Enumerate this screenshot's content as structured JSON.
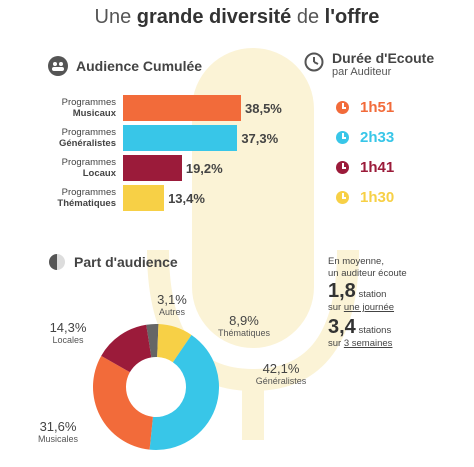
{
  "title_light": "Une ",
  "title_bold": "grande diversité",
  "title_light2": " de ",
  "title_bold2": "l'offre",
  "audience_section": {
    "title": "Audience Cumulée",
    "icon": "people-icon"
  },
  "duration_section": {
    "title": "Durée d'Ecoute",
    "subtitle": "par Auditeur",
    "icon": "clock-icon"
  },
  "share_section": {
    "title": "Part d'audience",
    "icon": "half-circle-icon"
  },
  "colors": {
    "musicaux": "#f26b3a",
    "generalistes": "#38c6e8",
    "locales": "#9b1b3a",
    "thematiques": "#f7d046",
    "autres": "#666666"
  },
  "chart_data": [
    {
      "type": "bar",
      "orientation": "horizontal",
      "categories": [
        {
          "line1": "Programmes",
          "line2": "Musicaux"
        },
        {
          "line1": "Programmes",
          "line2": "Généralistes"
        },
        {
          "line1": "Programmes",
          "line2": "Locaux"
        },
        {
          "line1": "Programmes",
          "line2": "Thématiques"
        }
      ],
      "values": [
        38.5,
        37.3,
        19.2,
        13.4
      ],
      "value_labels": [
        "38,5%",
        "37,3%",
        "19,2%",
        "13,4%"
      ],
      "colors": [
        "#f26b3a",
        "#38c6e8",
        "#9b1b3a",
        "#f7d046"
      ],
      "xlim": [
        0,
        38.5
      ]
    },
    {
      "type": "table",
      "durations": [
        {
          "value": "1h51",
          "color": "#f26b3a"
        },
        {
          "value": "2h33",
          "color": "#38c6e8"
        },
        {
          "value": "1h41",
          "color": "#9b1b3a"
        },
        {
          "value": "1h30",
          "color": "#f7d046"
        }
      ]
    },
    {
      "type": "pie",
      "donut": true,
      "slices": [
        {
          "name": "Autres",
          "value": 3.1,
          "label": "3,1%",
          "color": "#666666"
        },
        {
          "name": "Thématiques",
          "value": 8.9,
          "label": "8,9%",
          "color": "#f7d046"
        },
        {
          "name": "Généralistes",
          "value": 42.1,
          "label": "42,1%",
          "color": "#38c6e8"
        },
        {
          "name": "Musicales",
          "value": 31.6,
          "label": "31,6%",
          "color": "#f26b3a"
        },
        {
          "name": "Locales",
          "value": 14.3,
          "label": "14,3%",
          "color": "#9b1b3a"
        }
      ]
    }
  ],
  "facts": {
    "intro1": "En moyenne,",
    "intro2": "un auditeur écoute",
    "stat1_value": "1,8",
    "stat1_unit": "station",
    "stat1_sub_a": "sur ",
    "stat1_sub_b": "une journée",
    "stat2_value": "3,4",
    "stat2_unit": "stations",
    "stat2_sub_a": "sur ",
    "stat2_sub_b": "3 semaines"
  }
}
